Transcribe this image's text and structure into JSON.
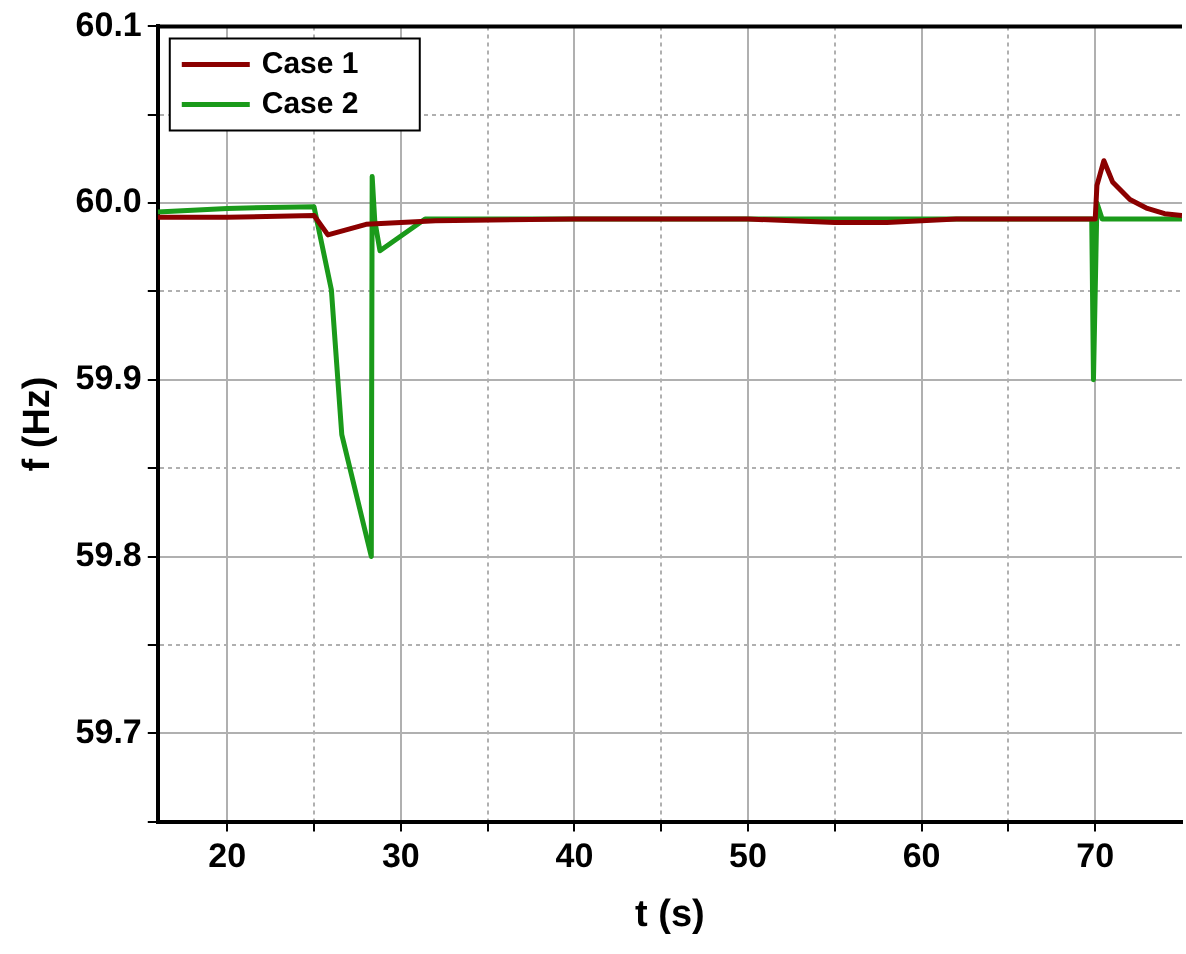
{
  "chart_data": {
    "type": "line",
    "xlabel": "t (s)",
    "ylabel": "f (Hz)",
    "xlim": [
      16,
      75
    ],
    "xticks": [
      20,
      {
        "value": 25,
        "label": null
      },
      30,
      {
        "value": 35,
        "label": null
      },
      40,
      {
        "value": 45,
        "label": null
      },
      50,
      {
        "value": 55,
        "label": null
      },
      60,
      {
        "value": 65,
        "label": null
      },
      70
    ],
    "ylim": [
      59.65,
      60.1
    ],
    "yticks": [
      {
        "value": 59.65,
        "label": null
      },
      59.7,
      {
        "value": 59.75,
        "label": null
      },
      59.8,
      {
        "value": 59.85,
        "label": null
      },
      59.9,
      {
        "value": 59.95,
        "label": null
      },
      "60.0",
      {
        "value": 60.05,
        "label": null
      },
      60.1
    ],
    "grid": true,
    "legend": "top left",
    "marker": "none",
    "line_style": "solid",
    "series": [
      {
        "name": "Case 1",
        "color": "#8b0000",
        "x": [
          16,
          20,
          25,
          25.8,
          28,
          32,
          40,
          50,
          55,
          58,
          62,
          70,
          70.1,
          70.5,
          71,
          72,
          73,
          74,
          75
        ],
        "values": [
          59.992,
          59.992,
          59.993,
          59.982,
          59.988,
          59.99,
          59.991,
          59.991,
          59.989,
          59.989,
          59.991,
          59.991,
          60.01,
          60.024,
          60.012,
          60.002,
          59.997,
          59.994,
          59.993
        ]
      },
      {
        "name": "Case 2",
        "color": "#1a9a1a",
        "x": [
          16,
          20,
          25,
          26,
          26.6,
          28.3,
          28.35,
          28.5,
          28.8,
          31.4,
          40,
          50,
          60,
          69.8,
          69.9,
          70.1,
          70.4,
          75
        ],
        "values": [
          59.995,
          59.997,
          59.998,
          59.951,
          59.869,
          59.8,
          60.015,
          59.99,
          59.973,
          59.991,
          59.991,
          59.991,
          59.991,
          59.991,
          59.9,
          60.0,
          59.991,
          59.991
        ]
      }
    ]
  }
}
